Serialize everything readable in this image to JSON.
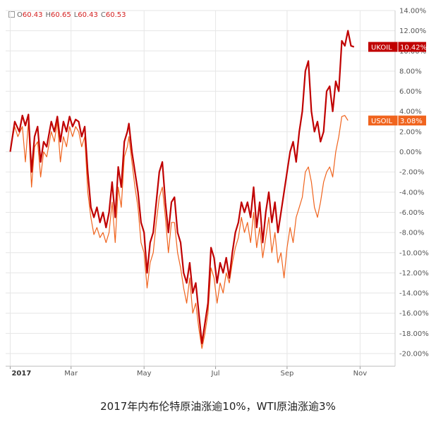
{
  "ohlc": {
    "o_label": "O",
    "o": "60.43",
    "h_label": "H",
    "h": "60.65",
    "l_label": "L",
    "l": "60.43",
    "c_label": "C",
    "c": "60.53"
  },
  "caption": "2017年内布伦特原油涨逾10%，WTI原油涨逾3%",
  "colors": {
    "ukoil": "#c00000",
    "usoil": "#f0641e",
    "grid": "#e6e6e6",
    "axis_text": "#555555"
  },
  "chart_data": {
    "type": "line",
    "x_ticks": [
      {
        "label": "2017",
        "bold": true,
        "t": 0
      },
      {
        "label": "Mar",
        "t": 40
      },
      {
        "label": "May",
        "t": 88
      },
      {
        "label": "Jul",
        "t": 135
      },
      {
        "label": "Sep",
        "t": 182
      },
      {
        "label": "Nov",
        "t": 230
      }
    ],
    "x_range": [
      -3,
      253
    ],
    "ylim": [
      -20.5,
      14
    ],
    "y_ticks": [
      "14.00%",
      "12.00%",
      "10.00%",
      "8.00%",
      "6.00%",
      "4.00%",
      "2.00%",
      "0.00%",
      "-2.00%",
      "-4.00%",
      "-6.00%",
      "-8.00%",
      "-10.00%",
      "-12.00%",
      "-14.00%",
      "-16.00%",
      "-18.00%",
      "-20.00%"
    ],
    "y_tick_values": [
      14,
      12,
      10,
      8,
      6,
      4,
      2,
      0,
      -2,
      -4,
      -6,
      -8,
      -10,
      -12,
      -14,
      -16,
      -18,
      -20
    ],
    "series": [
      {
        "name": "UKOIL",
        "last_label": "10.42%",
        "points": [
          [
            0,
            0
          ],
          [
            3,
            3
          ],
          [
            6,
            2
          ],
          [
            8,
            3.6
          ],
          [
            10,
            2.6
          ],
          [
            12,
            3.7
          ],
          [
            14,
            -2
          ],
          [
            16,
            1.5
          ],
          [
            18,
            2.5
          ],
          [
            20,
            -1
          ],
          [
            22,
            1
          ],
          [
            24,
            0.5
          ],
          [
            27,
            3
          ],
          [
            29,
            2
          ],
          [
            31,
            3.5
          ],
          [
            33,
            1
          ],
          [
            35,
            3
          ],
          [
            37,
            2
          ],
          [
            39,
            3.5
          ],
          [
            41,
            2.5
          ],
          [
            43,
            3.2
          ],
          [
            45,
            3
          ],
          [
            47,
            1.5
          ],
          [
            49,
            2.5
          ],
          [
            51,
            -2
          ],
          [
            53,
            -5.5
          ],
          [
            55,
            -6.5
          ],
          [
            57,
            -5.5
          ],
          [
            59,
            -7
          ],
          [
            61,
            -6
          ],
          [
            63,
            -7.5
          ],
          [
            65,
            -6
          ],
          [
            67,
            -3
          ],
          [
            69,
            -6.5
          ],
          [
            71,
            -1.5
          ],
          [
            73,
            -3.5
          ],
          [
            75,
            1
          ],
          [
            77,
            2
          ],
          [
            78,
            2.8
          ],
          [
            80,
            0
          ],
          [
            82,
            -2
          ],
          [
            84,
            -4
          ],
          [
            86,
            -7
          ],
          [
            88,
            -8
          ],
          [
            90,
            -12
          ],
          [
            92,
            -9
          ],
          [
            94,
            -8
          ],
          [
            96,
            -5
          ],
          [
            98,
            -2
          ],
          [
            100,
            -1
          ],
          [
            102,
            -5
          ],
          [
            104,
            -8
          ],
          [
            106,
            -5
          ],
          [
            108,
            -4.5
          ],
          [
            110,
            -8
          ],
          [
            112,
            -9
          ],
          [
            114,
            -12
          ],
          [
            116,
            -13
          ],
          [
            118,
            -11
          ],
          [
            120,
            -14
          ],
          [
            122,
            -13
          ],
          [
            124,
            -16
          ],
          [
            126,
            -19
          ],
          [
            128,
            -17
          ],
          [
            130,
            -15
          ],
          [
            132,
            -9.5
          ],
          [
            134,
            -10.5
          ],
          [
            136,
            -13
          ],
          [
            138,
            -11
          ],
          [
            140,
            -12
          ],
          [
            142,
            -10.5
          ],
          [
            144,
            -12.5
          ],
          [
            146,
            -10
          ],
          [
            148,
            -8
          ],
          [
            150,
            -7
          ],
          [
            152,
            -5
          ],
          [
            154,
            -6
          ],
          [
            156,
            -5
          ],
          [
            158,
            -6.5
          ],
          [
            160,
            -3.5
          ],
          [
            162,
            -7.5
          ],
          [
            164,
            -5
          ],
          [
            166,
            -9
          ],
          [
            168,
            -6
          ],
          [
            170,
            -4
          ],
          [
            172,
            -7
          ],
          [
            174,
            -5
          ],
          [
            176,
            -8
          ],
          [
            178,
            -6
          ],
          [
            180,
            -4
          ],
          [
            182,
            -2
          ],
          [
            184,
            0
          ],
          [
            186,
            1
          ],
          [
            188,
            -1
          ],
          [
            190,
            2
          ],
          [
            192,
            4
          ],
          [
            194,
            8
          ],
          [
            196,
            9
          ],
          [
            198,
            4
          ],
          [
            200,
            2
          ],
          [
            202,
            3
          ],
          [
            204,
            1
          ],
          [
            206,
            2
          ],
          [
            208,
            6
          ],
          [
            210,
            6.5
          ],
          [
            212,
            4
          ],
          [
            214,
            7
          ],
          [
            216,
            6
          ],
          [
            218,
            11
          ],
          [
            220,
            10.5
          ],
          [
            222,
            12
          ],
          [
            224,
            10.5
          ],
          [
            226,
            10.4
          ]
        ]
      },
      {
        "name": "USOIL",
        "last_label": "3.08%",
        "points": [
          [
            0,
            0.2
          ],
          [
            3,
            2.5
          ],
          [
            5,
            1.5
          ],
          [
            8,
            2.5
          ],
          [
            10,
            -1
          ],
          [
            12,
            3
          ],
          [
            14,
            -3.5
          ],
          [
            16,
            0.5
          ],
          [
            18,
            1
          ],
          [
            20,
            -2.5
          ],
          [
            22,
            0
          ],
          [
            24,
            -0.5
          ],
          [
            27,
            2
          ],
          [
            29,
            1
          ],
          [
            31,
            3
          ],
          [
            33,
            -1
          ],
          [
            35,
            1.5
          ],
          [
            37,
            0.5
          ],
          [
            39,
            2.5
          ],
          [
            41,
            1.5
          ],
          [
            43,
            2.5
          ],
          [
            45,
            2
          ],
          [
            47,
            0.5
          ],
          [
            49,
            1.5
          ],
          [
            51,
            -4
          ],
          [
            53,
            -6.5
          ],
          [
            55,
            -8.2
          ],
          [
            57,
            -7.5
          ],
          [
            59,
            -8.5
          ],
          [
            61,
            -8
          ],
          [
            63,
            -9
          ],
          [
            65,
            -8
          ],
          [
            67,
            -5
          ],
          [
            69,
            -9
          ],
          [
            71,
            -3.5
          ],
          [
            73,
            -5.5
          ],
          [
            75,
            -0.5
          ],
          [
            77,
            0.5
          ],
          [
            78,
            1.5
          ],
          [
            80,
            -1
          ],
          [
            82,
            -3.5
          ],
          [
            84,
            -5.5
          ],
          [
            86,
            -9
          ],
          [
            88,
            -10
          ],
          [
            90,
            -13.5
          ],
          [
            92,
            -11
          ],
          [
            94,
            -10
          ],
          [
            96,
            -7
          ],
          [
            98,
            -4.5
          ],
          [
            100,
            -3.5
          ],
          [
            102,
            -6.5
          ],
          [
            104,
            -10
          ],
          [
            106,
            -7
          ],
          [
            108,
            -7
          ],
          [
            110,
            -10
          ],
          [
            112,
            -11.5
          ],
          [
            114,
            -13.5
          ],
          [
            116,
            -15
          ],
          [
            118,
            -12.5
          ],
          [
            120,
            -16
          ],
          [
            122,
            -15
          ],
          [
            124,
            -17.5
          ],
          [
            126,
            -19.5
          ],
          [
            128,
            -18
          ],
          [
            130,
            -16
          ],
          [
            132,
            -11.5
          ],
          [
            134,
            -12.5
          ],
          [
            136,
            -15
          ],
          [
            138,
            -13
          ],
          [
            140,
            -14
          ],
          [
            142,
            -12
          ],
          [
            144,
            -13
          ],
          [
            146,
            -11
          ],
          [
            148,
            -9.5
          ],
          [
            150,
            -8.5
          ],
          [
            152,
            -6.5
          ],
          [
            154,
            -8
          ],
          [
            156,
            -7
          ],
          [
            158,
            -9
          ],
          [
            160,
            -6
          ],
          [
            162,
            -9.5
          ],
          [
            164,
            -7.5
          ],
          [
            166,
            -10.5
          ],
          [
            168,
            -8.5
          ],
          [
            170,
            -6.5
          ],
          [
            172,
            -10
          ],
          [
            174,
            -8
          ],
          [
            176,
            -11
          ],
          [
            178,
            -10
          ],
          [
            180,
            -12.5
          ],
          [
            182,
            -9.5
          ],
          [
            184,
            -7.5
          ],
          [
            186,
            -9
          ],
          [
            188,
            -6.5
          ],
          [
            190,
            -5.5
          ],
          [
            192,
            -4.5
          ],
          [
            194,
            -2
          ],
          [
            196,
            -1.5
          ],
          [
            198,
            -3
          ],
          [
            200,
            -5.5
          ],
          [
            202,
            -6.5
          ],
          [
            204,
            -5
          ],
          [
            206,
            -3
          ],
          [
            208,
            -2
          ],
          [
            210,
            -1.5
          ],
          [
            212,
            -2.5
          ],
          [
            214,
            0
          ],
          [
            216,
            1.5
          ],
          [
            218,
            3.5
          ],
          [
            220,
            3.6
          ],
          [
            222,
            3.1
          ]
        ]
      }
    ]
  }
}
